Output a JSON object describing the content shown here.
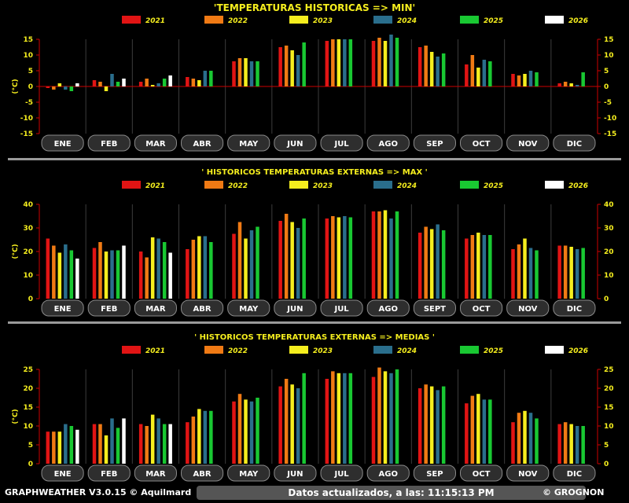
{
  "series_colors": {
    "2021": "#e11414",
    "2022": "#f07a14",
    "2023": "#f5ee1e",
    "2024": "#2a6e8c",
    "2025": "#19c832",
    "2026": "#ffffff"
  },
  "chart_data": [
    {
      "type": "bar",
      "title": "'TEMPERATURAS HISTORICAS  => MIN'",
      "ylabel": "(°C)",
      "ylim": [
        -15,
        15
      ],
      "yticks": [
        -15,
        -10,
        -5,
        0,
        5,
        10,
        15
      ],
      "categories": [
        "ENE",
        "FEB",
        "MAR",
        "ABR",
        "MAY",
        "JUN",
        "JUL",
        "AGO",
        "SEP",
        "OCT",
        "NOV",
        "DIC"
      ],
      "series": [
        {
          "name": "2021",
          "values": [
            -0.5,
            2,
            1.5,
            3,
            8,
            12.5,
            14.5,
            14.5,
            12.5,
            7,
            4,
            1
          ]
        },
        {
          "name": "2022",
          "values": [
            -1,
            1.5,
            2.5,
            2.5,
            9,
            13,
            15,
            15.5,
            13,
            10,
            3.5,
            1.5
          ]
        },
        {
          "name": "2023",
          "values": [
            1,
            -1.5,
            0.5,
            2,
            9,
            11.5,
            15,
            14.5,
            11,
            6,
            4,
            1
          ]
        },
        {
          "name": "2024",
          "values": [
            -1,
            4,
            1,
            5,
            8,
            10,
            15,
            16.5,
            9.5,
            8.5,
            5,
            0.5
          ]
        },
        {
          "name": "2025",
          "values": [
            -1.5,
            1.5,
            2.5,
            5,
            8,
            14,
            15,
            15.5,
            10.5,
            8,
            4.5,
            4.5
          ]
        },
        {
          "name": "2026",
          "values": [
            1,
            2.5,
            3.5,
            null,
            null,
            null,
            null,
            null,
            null,
            null,
            null,
            null
          ]
        }
      ]
    },
    {
      "type": "bar",
      "title": "' HISTORICOS TEMPERATURAS EXTERNAS => MAX '",
      "ylabel": "(°C)",
      "ylim": [
        0,
        40
      ],
      "yticks": [
        0,
        10,
        20,
        30,
        40
      ],
      "categories": [
        "ENE",
        "FEB",
        "MAR",
        "ABR",
        "MAY",
        "JUN",
        "JUL",
        "AGO",
        "SEPT",
        "OCT",
        "NOV",
        "DIC"
      ],
      "series": [
        {
          "name": "2021",
          "values": [
            25.5,
            21.5,
            20,
            21,
            27.5,
            33,
            34,
            37,
            28,
            25.5,
            21,
            22.5
          ]
        },
        {
          "name": "2022",
          "values": [
            22.5,
            24,
            17.5,
            25,
            32.5,
            36,
            35,
            37,
            30.5,
            27,
            23,
            22.5
          ]
        },
        {
          "name": "2023",
          "values": [
            19.5,
            20,
            26,
            26.5,
            25.5,
            32.5,
            34.5,
            37.5,
            29.5,
            28,
            25.5,
            22
          ]
        },
        {
          "name": "2024",
          "values": [
            23,
            20.5,
            25.5,
            26.5,
            29,
            30,
            35,
            34,
            31.5,
            27,
            21.5,
            21
          ]
        },
        {
          "name": "2025",
          "values": [
            20.5,
            20.5,
            24,
            24,
            30.5,
            34,
            34.5,
            37,
            29,
            27,
            20.5,
            21.5
          ]
        },
        {
          "name": "2026",
          "values": [
            17,
            22.5,
            19.5,
            null,
            null,
            null,
            null,
            null,
            null,
            null,
            null,
            null
          ]
        }
      ]
    },
    {
      "type": "bar",
      "title": "' HISTORICOS TEMPERATURAS EXTERNAS => MEDIAS '",
      "ylabel": "(°C)",
      "ylim": [
        0,
        25
      ],
      "yticks": [
        0,
        5,
        10,
        15,
        20,
        25
      ],
      "categories": [
        "ENE",
        "FEB",
        "MAR",
        "ABR",
        "MAY",
        "JUN",
        "JUL",
        "AGO",
        "SEP",
        "OCT",
        "NOV",
        "DIC"
      ],
      "series": [
        {
          "name": "2021",
          "values": [
            8.5,
            10.5,
            10.5,
            11,
            16.5,
            20.5,
            22.5,
            23,
            20,
            16,
            11,
            10.5
          ]
        },
        {
          "name": "2022",
          "values": [
            8.5,
            10.5,
            10,
            12.5,
            18.5,
            22.5,
            24.5,
            25.5,
            21,
            18,
            13.5,
            11
          ]
        },
        {
          "name": "2023",
          "values": [
            8.5,
            7.5,
            13,
            14.5,
            17,
            21,
            24,
            24.5,
            20.5,
            18.5,
            14,
            10.5
          ]
        },
        {
          "name": "2024",
          "values": [
            10.5,
            12,
            12,
            14,
            16.5,
            20,
            24,
            24,
            19.5,
            17,
            13.5,
            10
          ]
        },
        {
          "name": "2025",
          "values": [
            10,
            9.5,
            10.5,
            14,
            17.5,
            24,
            24,
            25,
            20.5,
            17,
            12,
            10
          ]
        },
        {
          "name": "2026",
          "values": [
            9,
            12,
            10.5,
            null,
            null,
            null,
            null,
            null,
            null,
            null,
            null,
            null
          ]
        }
      ]
    }
  ],
  "footer": {
    "version": "GRAPHWEATHER V3.0.15 © Aquilmard",
    "status": "Datos actualizados, a las: 11:15:13 PM",
    "credit": "© GROGNON"
  }
}
